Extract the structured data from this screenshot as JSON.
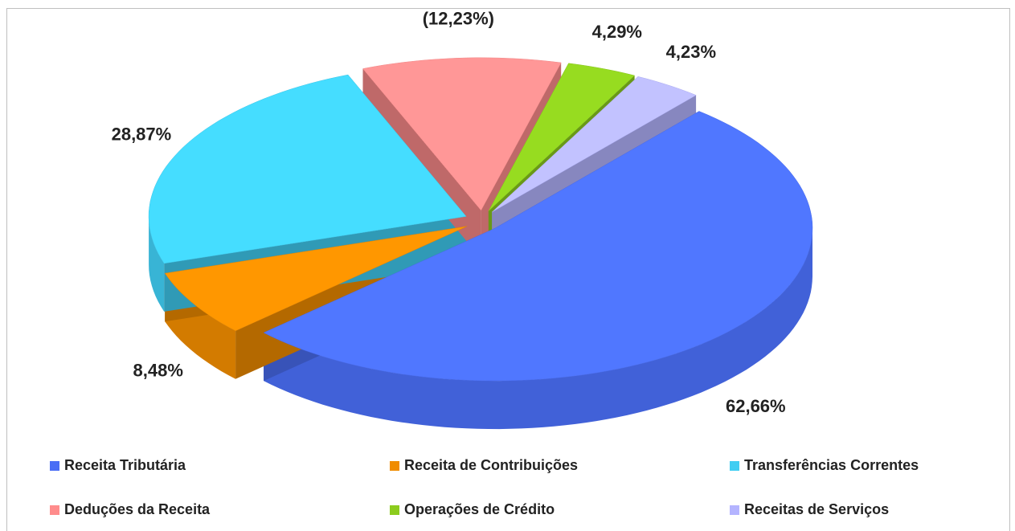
{
  "chart_data": {
    "type": "pie3d",
    "categories": [
      "Receita Tributária",
      "Receita de Contribuições",
      "Transferências Correntes",
      "Deduções da Receita",
      "Operações de Crédito",
      "Receitas de Serviços"
    ],
    "values": [
      62.66,
      8.48,
      28.87,
      -12.23,
      4.29,
      4.23
    ],
    "value_labels": [
      "62,66%",
      "8,48%",
      "28,87%",
      "(12,23%)",
      "4,29%",
      "4,23%"
    ],
    "colors": [
      "#4a6ef5",
      "#f08c00",
      "#40cdf2",
      "#ff8c8c",
      "#8ccc1e",
      "#b4b4ff"
    ],
    "legend": "bottom"
  }
}
